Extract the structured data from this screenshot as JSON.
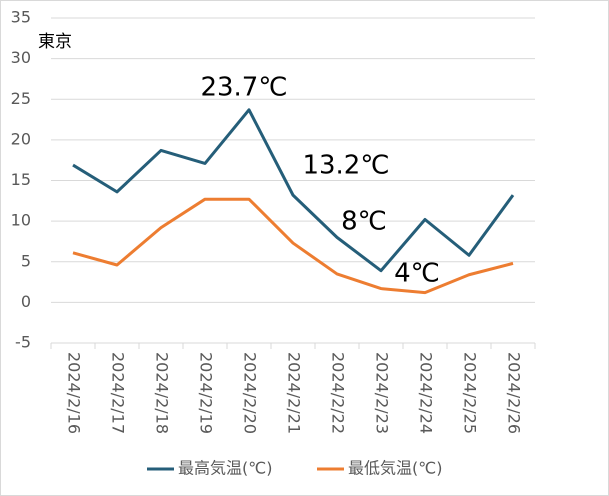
{
  "chart_data": {
    "type": "line",
    "title": "東京",
    "categories": [
      "2024/2/16",
      "2024/2/17",
      "2024/2/18",
      "2024/2/19",
      "2024/2/20",
      "2024/2/21",
      "2024/2/22",
      "2024/2/23",
      "2024/2/24",
      "2024/2/25",
      "2024/2/26"
    ],
    "series": [
      {
        "name": "最高気温(℃)",
        "color": "#255e79",
        "values": [
          16.9,
          13.6,
          18.7,
          17.1,
          23.7,
          13.2,
          8.0,
          3.9,
          10.2,
          5.8,
          13.2
        ]
      },
      {
        "name": "最低気温(℃)",
        "color": "#ed7d31",
        "values": [
          6.1,
          4.6,
          9.2,
          12.7,
          12.7,
          7.3,
          3.5,
          1.7,
          1.2,
          3.4,
          4.8
        ]
      }
    ],
    "annotations": [
      "23.7℃",
      "13.2℃",
      "8℃",
      "4℃"
    ],
    "ylim": [
      -5,
      35
    ],
    "yticks": [
      -5,
      0,
      5,
      10,
      15,
      20,
      25,
      30,
      35
    ],
    "grid": true,
    "legend": "bottom"
  }
}
